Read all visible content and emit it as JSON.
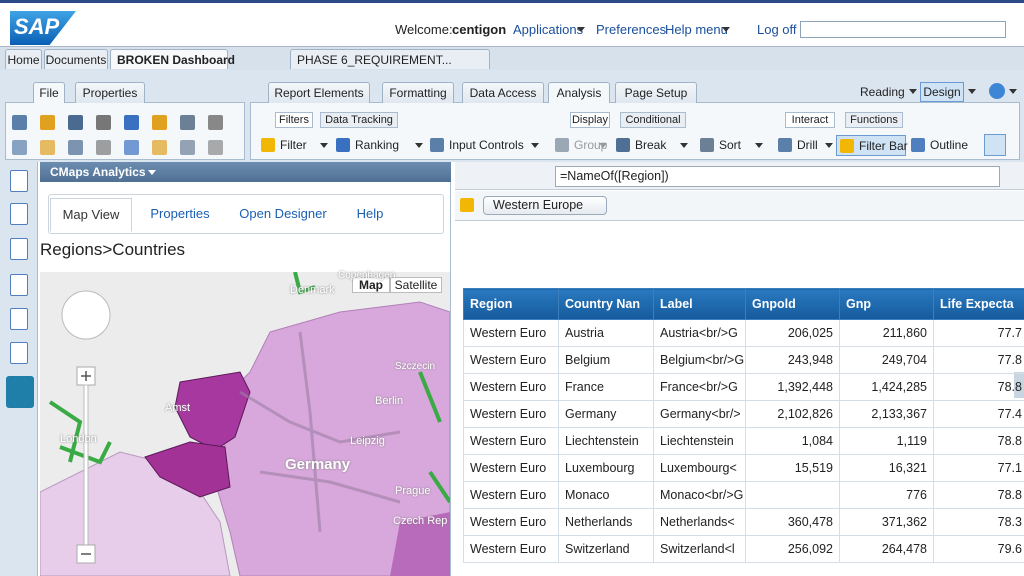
{
  "header": {
    "logo": "SAP",
    "welcome": "Welcome:",
    "user": "centigon",
    "links": [
      "Applications",
      "Preferences",
      "Help menu",
      "Log off"
    ]
  },
  "doc_tabs": [
    "Home",
    "Documents",
    "BROKEN Dashboard",
    "PHASE 6_REQUIREMENT..."
  ],
  "ribbon": {
    "left_tabs": [
      "File",
      "Properties"
    ],
    "right_tabs": [
      "Report Elements",
      "Formatting",
      "Data Access",
      "Analysis",
      "Page Setup"
    ],
    "modes": [
      "Reading",
      "Design"
    ],
    "sub_tabs": [
      "Filters",
      "Data Tracking",
      "Display",
      "Conditional",
      "Interact",
      "Functions"
    ],
    "buttons": [
      "Filter",
      "Ranking",
      "Input Controls",
      "Group",
      "Break",
      "Sort",
      "Drill",
      "Filter Bar",
      "Outline"
    ]
  },
  "panel": {
    "title": "CMaps Analytics",
    "tabs": [
      "Map View",
      "Properties",
      "Open Designer",
      "Help"
    ],
    "heading": "Regions>Countries",
    "map_types": [
      "Map",
      "Satellite"
    ],
    "map_labels": [
      "Copenhagen",
      "Denmark",
      "Amst",
      "London",
      "Germany",
      "Berlin",
      "Leipzig",
      "Prague",
      "Czech Rep",
      "Szczecin"
    ]
  },
  "formula": "=NameOf([Region])",
  "filter_value": "Western Europe",
  "table": {
    "columns": [
      "Region",
      "Country Nan",
      "Label",
      "Gnpold",
      "Gnp",
      "Life Expecta"
    ],
    "rows": [
      [
        "Western Euro",
        "Austria",
        "Austria<br/>G",
        "206,025",
        "211,860",
        "77.7"
      ],
      [
        "Western Euro",
        "Belgium",
        "Belgium<br/>G",
        "243,948",
        "249,704",
        "77.8"
      ],
      [
        "Western Euro",
        "France",
        "France<br/>G",
        "1,392,448",
        "1,424,285",
        "78.8"
      ],
      [
        "Western Euro",
        "Germany",
        "Germany<br/>",
        "2,102,826",
        "2,133,367",
        "77.4"
      ],
      [
        "Western Euro",
        "Liechtenstein",
        "Liechtenstein",
        "1,084",
        "1,119",
        "78.8"
      ],
      [
        "Western Euro",
        "Luxembourg",
        "Luxembourg<",
        "15,519",
        "16,321",
        "77.1"
      ],
      [
        "Western Euro",
        "Monaco",
        "Monaco<br/>G",
        null,
        "776",
        "78.8"
      ],
      [
        "Western Euro",
        "Netherlands",
        "Netherlands<",
        "360,478",
        "371,362",
        "78.3"
      ],
      [
        "Western Euro",
        "Switzerland",
        "Switzerland<l",
        "256,092",
        "264,478",
        "79.6"
      ]
    ]
  }
}
